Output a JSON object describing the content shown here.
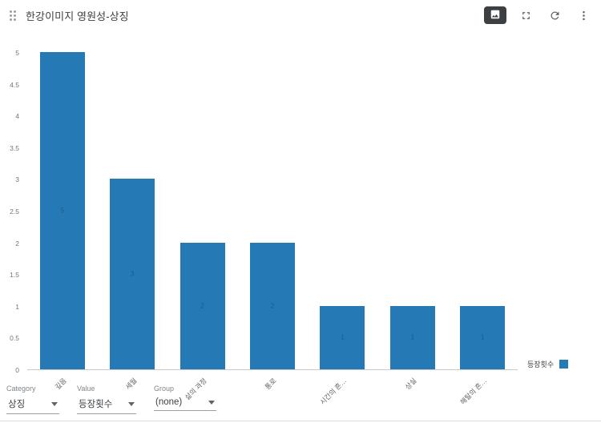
{
  "header": {
    "title": "한강이미지 영원성-상징"
  },
  "chart_data": {
    "type": "bar",
    "title": "한강이미지 영원성-상징",
    "categories": [
      "깊음",
      "세월",
      "삶의 과정",
      "통로",
      "시간의 흔…",
      "상실",
      "해탈의 흔…"
    ],
    "values": [
      5,
      3,
      2,
      2,
      1,
      1,
      1
    ],
    "series_name": "등장횟수",
    "ylabel": "",
    "xlabel": "",
    "ylim": [
      0,
      5
    ],
    "ytick_step": 0.5,
    "grid": false,
    "bar_color": "#2579b5",
    "bar_label_color": "#1b4965",
    "legend": {
      "label": "등장횟수",
      "position": "right"
    }
  },
  "controls": {
    "category": {
      "label": "Category",
      "value": "상징"
    },
    "value": {
      "label": "Value",
      "value": "등장횟수"
    },
    "group": {
      "label": "Group",
      "value": "(none)"
    }
  }
}
